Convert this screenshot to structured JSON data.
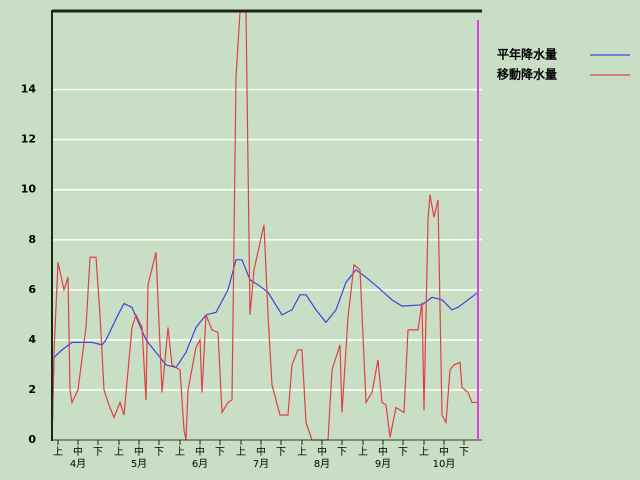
{
  "chart_data": {
    "type": "line",
    "xlim": [
      0,
      213
    ],
    "ylim": [
      0,
      17.1
    ],
    "yticks": [
      0,
      2,
      4,
      6,
      8,
      10,
      12,
      14
    ],
    "xticks": [
      {
        "value": 3,
        "label": "上"
      },
      {
        "value": 13,
        "label": "中"
      },
      {
        "value": 23,
        "label": "下"
      },
      {
        "value": 33.5,
        "label": "上"
      },
      {
        "value": 43.5,
        "label": "中"
      },
      {
        "value": 53.5,
        "label": "下"
      },
      {
        "value": 64,
        "label": "上"
      },
      {
        "value": 74,
        "label": "中"
      },
      {
        "value": 84,
        "label": "下"
      },
      {
        "value": 94.5,
        "label": "上"
      },
      {
        "value": 104.5,
        "label": "中"
      },
      {
        "value": 114.5,
        "label": "下"
      },
      {
        "value": 125,
        "label": "上"
      },
      {
        "value": 135,
        "label": "中"
      },
      {
        "value": 145,
        "label": "下"
      },
      {
        "value": 155.5,
        "label": "上"
      },
      {
        "value": 165.5,
        "label": "中"
      },
      {
        "value": 175.5,
        "label": "下"
      },
      {
        "value": 186,
        "label": "上"
      },
      {
        "value": 196,
        "label": "中"
      },
      {
        "value": 206,
        "label": "下"
      }
    ],
    "month_ticks": [
      {
        "value": 13,
        "label": "4月"
      },
      {
        "value": 43.5,
        "label": "5月"
      },
      {
        "value": 74,
        "label": "6月"
      },
      {
        "value": 104.5,
        "label": "7月"
      },
      {
        "value": 135,
        "label": "8月"
      },
      {
        "value": 165.5,
        "label": "9月"
      },
      {
        "value": 196,
        "label": "10月"
      }
    ],
    "grid": true,
    "series": [
      {
        "name": "平年降水量",
        "color": "#4040e0",
        "x": [
          0,
          1,
          5,
          10,
          20,
          25,
          27,
          33,
          36,
          40,
          47,
          52,
          57,
          62,
          67,
          72,
          77,
          82,
          88,
          92,
          95,
          99,
          103,
          108,
          115,
          120,
          124,
          127,
          132,
          137,
          142,
          147,
          152,
          157,
          163,
          170,
          175,
          185,
          190,
          195,
          200,
          203,
          213
        ],
        "values": [
          0,
          3.3,
          3.6,
          3.9,
          3.9,
          3.8,
          4.0,
          5.0,
          5.45,
          5.3,
          4.0,
          3.5,
          3.0,
          2.9,
          3.5,
          4.5,
          5.0,
          5.1,
          6.0,
          7.2,
          7.2,
          6.4,
          6.2,
          5.9,
          5.0,
          5.2,
          5.8,
          5.8,
          5.2,
          4.7,
          5.2,
          6.3,
          6.8,
          6.5,
          6.1,
          5.6,
          5.35,
          5.4,
          5.7,
          5.6,
          5.2,
          5.3,
          5.9
        ]
      },
      {
        "name": "移動降水量",
        "color": "#e04040",
        "x": [
          0,
          1,
          3,
          6,
          8,
          9,
          10,
          13,
          17,
          19,
          22,
          24,
          26,
          28,
          31,
          34,
          36,
          40,
          42,
          45,
          47,
          48,
          52,
          55,
          58,
          60,
          64,
          66,
          67,
          68,
          72,
          74,
          75,
          77,
          80,
          83,
          85,
          88,
          90,
          92,
          94,
          97,
          99,
          101,
          106,
          108,
          110,
          114,
          118,
          120,
          123,
          125,
          127,
          130,
          138,
          140,
          144,
          145,
          148,
          151,
          154,
          157,
          160,
          163,
          165,
          167,
          169,
          172,
          176,
          178,
          183,
          185,
          186,
          188,
          189,
          191,
          193,
          195,
          197,
          199,
          201,
          204,
          205,
          208,
          210,
          213
        ],
        "values": [
          0,
          3.5,
          7.1,
          6.0,
          6.5,
          2.0,
          1.5,
          2.0,
          4.5,
          7.3,
          7.3,
          5.0,
          2.0,
          1.5,
          0.9,
          1.5,
          1.0,
          4.5,
          5.0,
          4.5,
          1.6,
          6.2,
          7.5,
          1.9,
          4.5,
          3.0,
          2.8,
          0.4,
          0.0,
          2.0,
          3.7,
          4.0,
          1.9,
          5.0,
          4.4,
          4.3,
          1.1,
          1.5,
          1.6,
          14.5,
          17.1,
          17.1,
          5.0,
          6.8,
          8.6,
          5.0,
          2.2,
          1.0,
          1.0,
          3.0,
          3.6,
          3.6,
          0.7,
          0.0,
          0.0,
          2.8,
          3.8,
          1.1,
          4.9,
          7.0,
          6.8,
          1.5,
          1.9,
          3.2,
          1.5,
          1.4,
          0.1,
          1.3,
          1.1,
          4.4,
          4.4,
          5.5,
          1.2,
          8.8,
          9.8,
          8.9,
          9.6,
          1.0,
          0.7,
          2.8,
          3.0,
          3.1,
          2.1,
          1.9,
          1.5,
          1.5
        ]
      }
    ]
  }
}
